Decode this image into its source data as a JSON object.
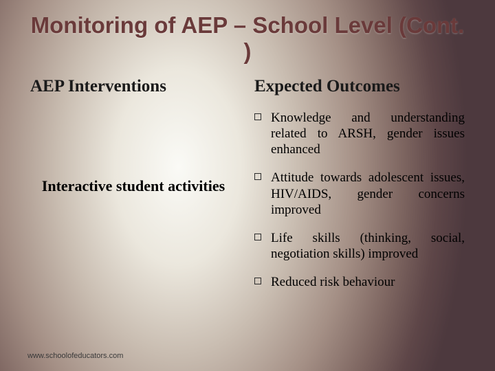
{
  "title": "Monitoring of AEP – School Level (Cont. )",
  "leftColumn": {
    "heading": "AEP Interventions",
    "subheading": "Interactive student activities"
  },
  "rightColumn": {
    "heading": "Expected Outcomes",
    "bullets": [
      "Knowledge and understanding related to ARSH, gender issues enhanced",
      "Attitude towards adolescent issues, HIV/AIDS, gender concerns improved",
      "Life skills (thinking, social, negotiation skills) improved",
      "Reduced risk behaviour"
    ]
  },
  "footer": "www.schoolofeducators.com",
  "styling": {
    "title_color": "#6a3a3a",
    "title_fontsize": 33,
    "heading_fontsize": 25,
    "body_fontsize": 19,
    "background_gradient_center": "#fafaf6",
    "background_gradient_edge": "#4d393e",
    "bullet_marker": "hollow-square"
  }
}
